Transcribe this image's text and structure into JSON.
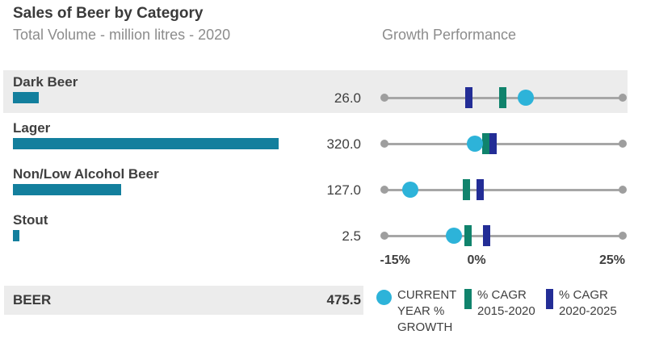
{
  "header": {
    "title": "Sales of Beer by Category",
    "subtitle": "Total Volume - million litres - 2020",
    "growth_header": "Growth Performance"
  },
  "colors": {
    "volume_bar": "#137f9d",
    "current_year_growth": "#2db3d9",
    "cagr_2015_2020": "#10836c",
    "cagr_2020_2025": "#232d96",
    "row_highlight": "#ececec",
    "axis_line": "#a6a6a6"
  },
  "chart_data": [
    {
      "type": "bar",
      "title": "Total Volume - million litres - 2020",
      "orientation": "horizontal",
      "categories": [
        "Dark Beer",
        "Lager",
        "Non/Low Alcohol Beer",
        "Stout"
      ],
      "values": [
        26.0,
        320.0,
        127.0,
        2.5
      ],
      "value_labels": [
        "26.0",
        "320.0",
        "127.0",
        "2.5"
      ],
      "total": {
        "label": "BEER",
        "value": 475.5,
        "value_label": "475.5"
      },
      "unit": "million litres"
    },
    {
      "type": "scatter",
      "title": "Growth Performance",
      "categories": [
        "Dark Beer",
        "Lager",
        "Non/Low Alcohol Beer",
        "Stout"
      ],
      "xlim": [
        -17,
        27
      ],
      "ticks": [
        {
          "value": -15,
          "label": "-15%"
        },
        {
          "value": 0,
          "label": "0%"
        },
        {
          "value": 25,
          "label": "25%"
        }
      ],
      "series": [
        {
          "name": "CURRENT YEAR % GROWTH",
          "marker": "circle",
          "color": "#2db3d9",
          "values": [
            9.0,
            -0.3,
            -12.2,
            -4.2
          ]
        },
        {
          "name": "% CAGR 2015-2020",
          "marker": "bar",
          "color": "#10836c",
          "values": [
            4.8,
            1.7,
            -1.9,
            -1.6
          ]
        },
        {
          "name": "% CAGR 2020-2025",
          "marker": "bar",
          "color": "#232d96",
          "values": [
            -1.4,
            3.0,
            0.6,
            1.9
          ]
        }
      ],
      "legend_position": "bottom"
    }
  ],
  "legend": {
    "items": [
      {
        "marker": "circle",
        "color": "#2db3d9",
        "label_lines": [
          "CURRENT",
          "YEAR %",
          "GROWTH"
        ]
      },
      {
        "marker": "bar",
        "color": "#10836c",
        "label_lines": [
          "% CAGR",
          "2015-2020"
        ]
      },
      {
        "marker": "bar",
        "color": "#232d96",
        "label_lines": [
          "% CAGR",
          "2020-2025"
        ]
      }
    ]
  }
}
